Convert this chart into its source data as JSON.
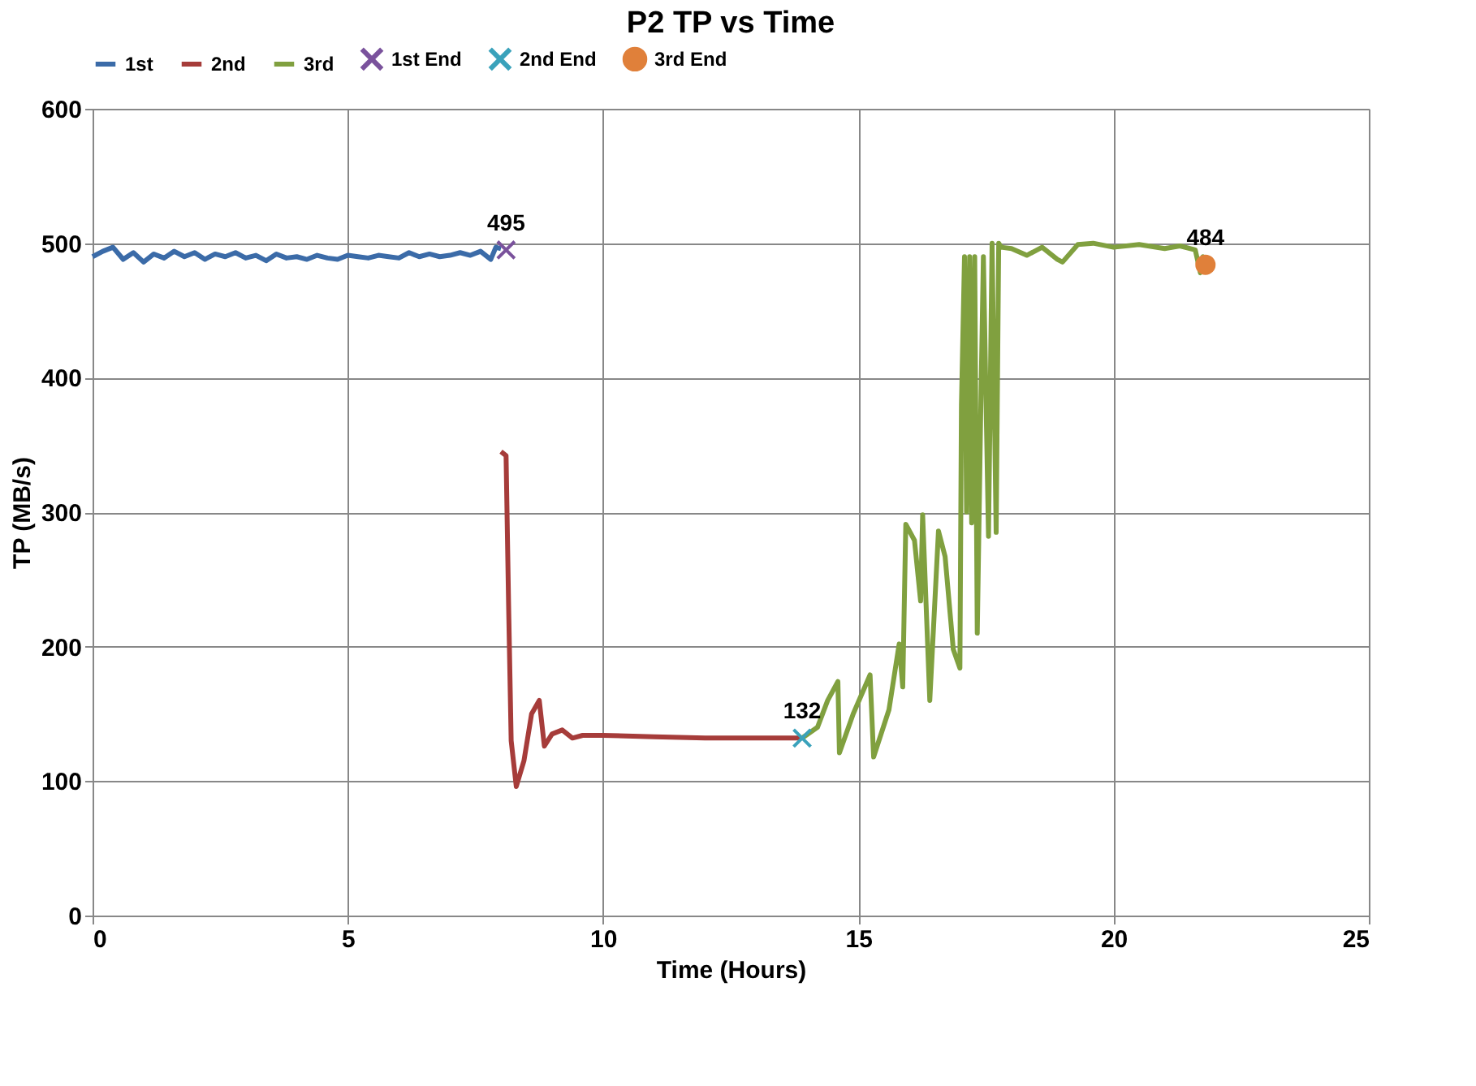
{
  "chart_data": {
    "type": "line",
    "title": "P2 TP vs Time",
    "xlabel": "Time (Hours)",
    "ylabel": "TP (MB/s)",
    "xlim": [
      0,
      25
    ],
    "xticks": [
      0,
      5,
      10,
      15,
      20,
      25
    ],
    "ylim": [
      0,
      600
    ],
    "yticks": [
      0,
      100,
      200,
      300,
      400,
      500,
      600
    ],
    "grid": true,
    "legend": "top",
    "line_style": "solid",
    "series": [
      {
        "name": "1st",
        "color": "#3b6ba8",
        "marker": "none",
        "x": [
          0,
          0.2,
          0.4,
          0.6,
          0.8,
          1.0,
          1.2,
          1.4,
          1.6,
          1.8,
          2.0,
          2.2,
          2.4,
          2.6,
          2.8,
          3.0,
          3.2,
          3.4,
          3.6,
          3.8,
          4.0,
          4.2,
          4.4,
          4.6,
          4.8,
          5.0,
          5.2,
          5.4,
          5.6,
          5.8,
          6.0,
          6.2,
          6.4,
          6.6,
          6.8,
          7.0,
          7.2,
          7.4,
          7.6,
          7.8,
          7.9,
          8.0
        ],
        "values": [
          490,
          494,
          497,
          488,
          493,
          486,
          492,
          489,
          494,
          490,
          493,
          488,
          492,
          490,
          493,
          489,
          491,
          487,
          492,
          489,
          490,
          488,
          491,
          489,
          488,
          491,
          490,
          489,
          491,
          490,
          489,
          493,
          490,
          492,
          490,
          491,
          493,
          491,
          494,
          488,
          497,
          496
        ]
      },
      {
        "name": "2nd",
        "color": "#a63c3a",
        "marker": "none",
        "x": [
          8.0,
          8.1,
          8.15,
          8.2,
          8.3,
          8.45,
          8.6,
          8.75,
          8.85,
          9.0,
          9.2,
          9.4,
          9.6,
          10,
          11,
          12,
          13,
          13.9
        ],
        "values": [
          345,
          342,
          230,
          130,
          96,
          115,
          150,
          160,
          126,
          135,
          138,
          132,
          134,
          134,
          133,
          132,
          132,
          132
        ]
      },
      {
        "name": "3rd",
        "color": "#80a03f",
        "marker": "none",
        "x": [
          13.9,
          14.2,
          14.4,
          14.6,
          14.63,
          14.9,
          15.23,
          15.3,
          15.6,
          15.8,
          15.87,
          15.93,
          16.1,
          16.22,
          16.26,
          16.4,
          16.57,
          16.7,
          16.86,
          16.99,
          17.02,
          17.08,
          17.12,
          17.18,
          17.22,
          17.28,
          17.33,
          17.4,
          17.45,
          17.55,
          17.62,
          17.7,
          17.75,
          17.8,
          18.0,
          18.3,
          18.6,
          18.9,
          19.0,
          19.3,
          19.6,
          20,
          20.5,
          21,
          21.3,
          21.6,
          21.7,
          21.75,
          21.8
        ],
        "values": [
          132,
          140,
          160,
          174,
          121,
          150,
          179,
          118,
          153,
          202,
          170,
          291,
          279,
          234,
          298,
          160,
          286,
          267,
          198,
          184,
          380,
          490,
          300,
          490,
          292,
          490,
          210,
          380,
          490,
          282,
          500,
          285,
          500,
          497,
          496,
          491,
          497,
          488,
          486,
          499,
          500,
          497,
          499,
          496,
          498,
          495,
          478,
          490,
          484
        ]
      },
      {
        "name": "1st End",
        "color": "#7a529c",
        "type": "scatter",
        "marker": "cross",
        "x": [
          8.1
        ],
        "values": [
          495
        ],
        "value_labels": [
          "495"
        ]
      },
      {
        "name": "2nd End",
        "color": "#3aa2bb",
        "type": "scatter",
        "marker": "cross",
        "x": [
          13.9
        ],
        "values": [
          132
        ],
        "value_labels": [
          "132"
        ]
      },
      {
        "name": "3rd End",
        "color": "#e0803a",
        "type": "scatter",
        "marker": "circle",
        "x": [
          21.8
        ],
        "values": [
          484
        ],
        "value_labels": [
          "484"
        ]
      }
    ]
  }
}
